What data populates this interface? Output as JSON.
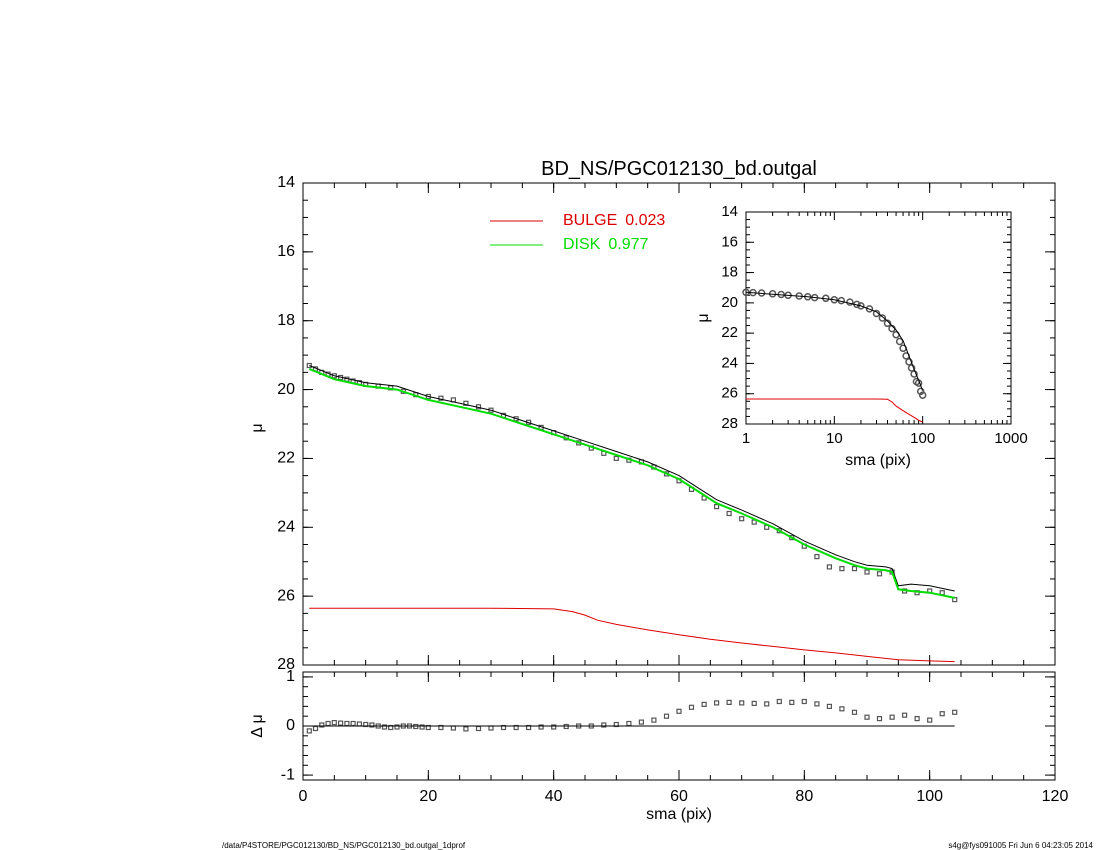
{
  "title": "BD_NS/PGC012130_bd.outgal",
  "footer": {
    "left": "/data/P4STORE/PGC012130/BD_NS/PGC012130_bd.outgal_1dprof",
    "right": "s4g@fys091005  Fri Jun  6 04:23:05 2014"
  },
  "legend": [
    {
      "name": "BULGE",
      "value": "0.023",
      "color": "#dd0000"
    },
    {
      "name": "DISK",
      "value": "0.977",
      "color": "#00dd00"
    }
  ],
  "colors": {
    "bulge": "#dd0000",
    "disk": "#00dd00",
    "model": "#000000",
    "data": "#555555"
  },
  "chart_data": [
    {
      "type": "line",
      "panel": "main",
      "xlabel": "",
      "ylabel": "μ",
      "xlim": [
        0,
        120
      ],
      "ylim": [
        28,
        14
      ],
      "xticks": [
        0,
        20,
        40,
        60,
        80,
        100,
        120
      ],
      "yticks": [
        14,
        16,
        18,
        20,
        22,
        24,
        26,
        28
      ],
      "series": [
        {
          "name": "data",
          "style": "squares",
          "x": [
            1,
            2,
            3,
            4,
            5,
            6,
            7,
            8,
            9,
            10,
            12,
            14,
            16,
            18,
            20,
            22,
            24,
            26,
            28,
            30,
            32,
            34,
            36,
            38,
            40,
            42,
            44,
            46,
            48,
            50,
            52,
            54,
            56,
            58,
            60,
            62,
            64,
            66,
            68,
            70,
            72,
            74,
            76,
            78,
            80,
            82,
            84,
            86,
            88,
            90,
            92,
            94,
            96,
            98,
            100,
            102,
            104
          ],
          "y": [
            19.3,
            19.4,
            19.5,
            19.55,
            19.6,
            19.65,
            19.7,
            19.75,
            19.8,
            19.85,
            19.9,
            19.95,
            20.05,
            20.15,
            20.2,
            20.25,
            20.3,
            20.4,
            20.5,
            20.6,
            20.75,
            20.85,
            20.95,
            21.1,
            21.25,
            21.4,
            21.55,
            21.7,
            21.85,
            22.0,
            22.05,
            22.1,
            22.25,
            22.45,
            22.65,
            22.9,
            23.15,
            23.4,
            23.6,
            23.75,
            23.85,
            24.0,
            24.1,
            24.3,
            24.55,
            24.85,
            25.15,
            25.2,
            25.2,
            25.3,
            25.35,
            25.3,
            25.85,
            25.9,
            25.85,
            25.9,
            26.1
          ]
        },
        {
          "name": "model",
          "style": "line",
          "x": [
            1,
            5,
            10,
            15,
            20,
            25,
            30,
            35,
            40,
            45,
            50,
            55,
            60,
            63,
            66,
            70,
            75,
            80,
            85,
            88,
            90,
            93,
            94,
            95,
            97,
            100,
            104
          ],
          "y": [
            19.3,
            19.6,
            19.8,
            19.9,
            20.2,
            20.4,
            20.6,
            20.9,
            21.2,
            21.5,
            21.8,
            22.1,
            22.5,
            22.85,
            23.2,
            23.5,
            23.9,
            24.4,
            24.8,
            25.0,
            25.1,
            25.15,
            25.2,
            25.7,
            25.65,
            25.7,
            25.85
          ]
        },
        {
          "name": "disk",
          "style": "line",
          "x": [
            1,
            5,
            10,
            15,
            20,
            25,
            30,
            35,
            40,
            45,
            50,
            55,
            60,
            63,
            66,
            70,
            75,
            80,
            85,
            88,
            90,
            93,
            94,
            95,
            97,
            100,
            104
          ],
          "y": [
            19.4,
            19.7,
            19.9,
            20.0,
            20.3,
            20.5,
            20.7,
            21.0,
            21.3,
            21.6,
            21.9,
            22.2,
            22.6,
            22.95,
            23.3,
            23.6,
            24.0,
            24.5,
            24.9,
            25.1,
            25.2,
            25.25,
            25.3,
            25.8,
            25.85,
            25.9,
            26.05
          ]
        },
        {
          "name": "bulge",
          "style": "line",
          "x": [
            1,
            10,
            20,
            30,
            40,
            43,
            45,
            47,
            50,
            55,
            60,
            65,
            70,
            75,
            80,
            85,
            90,
            95,
            100,
            104
          ],
          "y": [
            26.35,
            26.35,
            26.35,
            26.35,
            26.37,
            26.45,
            26.55,
            26.7,
            26.82,
            26.98,
            27.12,
            27.25,
            27.36,
            27.46,
            27.56,
            27.65,
            27.75,
            27.85,
            27.88,
            27.9
          ]
        }
      ]
    },
    {
      "type": "scatter",
      "panel": "residual",
      "xlabel": "sma (pix)",
      "ylabel": "Δ μ",
      "xlim": [
        0,
        120
      ],
      "ylim": [
        -1.1,
        1.1
      ],
      "xticks": [
        0,
        20,
        40,
        60,
        80,
        100,
        120
      ],
      "yticks": [
        -1,
        0,
        1
      ],
      "series": [
        {
          "name": "residual",
          "style": "squares",
          "x": [
            1,
            2,
            3,
            4,
            5,
            6,
            7,
            8,
            9,
            10,
            11,
            12,
            13,
            14,
            15,
            16,
            17,
            18,
            19,
            20,
            22,
            24,
            26,
            28,
            30,
            32,
            34,
            36,
            38,
            40,
            42,
            44,
            46,
            48,
            50,
            52,
            54,
            56,
            58,
            60,
            62,
            64,
            66,
            68,
            70,
            72,
            74,
            76,
            78,
            80,
            82,
            84,
            86,
            88,
            90,
            92,
            94,
            96,
            98,
            100,
            102,
            104
          ],
          "y": [
            -0.1,
            -0.05,
            0.02,
            0.05,
            0.07,
            0.06,
            0.05,
            0.05,
            0.04,
            0.03,
            0.02,
            0.0,
            -0.02,
            -0.03,
            -0.02,
            0.0,
            0.0,
            -0.01,
            -0.02,
            -0.03,
            -0.03,
            -0.04,
            -0.06,
            -0.05,
            -0.04,
            -0.03,
            -0.03,
            -0.03,
            -0.02,
            -0.02,
            -0.01,
            0.0,
            0.0,
            0.02,
            0.03,
            0.05,
            0.08,
            0.12,
            0.2,
            0.3,
            0.38,
            0.44,
            0.47,
            0.48,
            0.47,
            0.46,
            0.45,
            0.5,
            0.48,
            0.5,
            0.45,
            0.4,
            0.35,
            0.28,
            0.18,
            0.15,
            0.18,
            0.22,
            0.15,
            0.12,
            0.25,
            0.28
          ]
        },
        {
          "name": "zero",
          "style": "line",
          "x": [
            1,
            104
          ],
          "y": [
            0,
            0
          ]
        }
      ]
    },
    {
      "type": "line",
      "panel": "inset",
      "xscale": "log",
      "xlabel": "sma (pix)",
      "ylabel": "μ",
      "xlim": [
        1,
        1000
      ],
      "ylim": [
        28,
        14
      ],
      "xticks": [
        1,
        10,
        100,
        1000
      ],
      "yticks": [
        14,
        16,
        18,
        20,
        22,
        24,
        26,
        28
      ],
      "series": [
        {
          "name": "data",
          "style": "circles",
          "x": [
            1,
            1.2,
            1.5,
            2,
            2.5,
            3,
            4,
            5,
            6,
            8,
            10,
            12,
            15,
            18,
            20,
            25,
            30,
            35,
            40,
            45,
            50,
            55,
            60,
            65,
            70,
            75,
            80,
            85,
            90,
            95,
            100
          ],
          "y": [
            19.3,
            19.32,
            19.35,
            19.4,
            19.45,
            19.5,
            19.55,
            19.6,
            19.65,
            19.7,
            19.8,
            19.85,
            19.95,
            20.1,
            20.2,
            20.4,
            20.7,
            21.0,
            21.35,
            21.7,
            22.1,
            22.55,
            23.0,
            23.5,
            23.9,
            24.3,
            24.7,
            25.2,
            25.3,
            25.85,
            26.1
          ]
        },
        {
          "name": "model",
          "style": "line",
          "x": [
            1,
            5,
            10,
            20,
            30,
            40,
            50,
            60,
            70,
            80,
            90,
            100
          ],
          "y": [
            19.3,
            19.6,
            19.8,
            20.2,
            20.6,
            21.2,
            21.8,
            22.5,
            23.5,
            24.4,
            25.1,
            25.8
          ]
        },
        {
          "name": "bulge",
          "style": "line",
          "x": [
            1,
            10,
            20,
            30,
            40,
            45,
            50,
            60,
            70,
            80,
            90,
            100
          ],
          "y": [
            26.35,
            26.35,
            26.35,
            26.35,
            26.37,
            26.55,
            26.82,
            27.12,
            27.36,
            27.56,
            27.75,
            27.88
          ]
        }
      ]
    }
  ]
}
